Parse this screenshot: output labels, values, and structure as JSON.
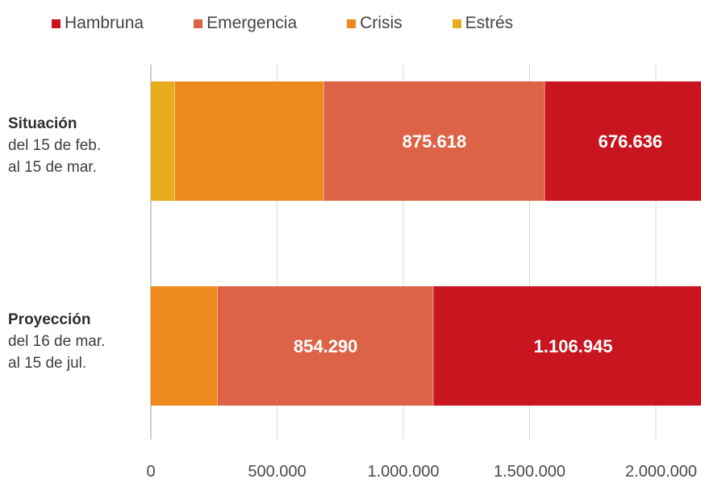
{
  "chart_data": {
    "type": "bar",
    "orientation": "horizontal",
    "stacked": true,
    "legend_position": "top",
    "categories": [
      {
        "title": "Situación",
        "line2": "del 15 de feb.",
        "line3": "al 15 de mar."
      },
      {
        "title": "Proyección",
        "line2": "del 16 de mar.",
        "line3": "al 15 de jul."
      }
    ],
    "series": [
      {
        "name": "Estrés",
        "color": "#e8ad1f",
        "values": [
          95000,
          0
        ],
        "labels": [
          "",
          ""
        ]
      },
      {
        "name": "Crisis",
        "color": "#ee8a1d",
        "values": [
          590000,
          265000
        ],
        "labels": [
          "",
          ""
        ]
      },
      {
        "name": "Emergencia",
        "color": "#dc6347",
        "values": [
          875618,
          854290
        ],
        "labels": [
          "875.618",
          "854.290"
        ]
      },
      {
        "name": "Hambruna",
        "color": "#c9151f",
        "values": [
          676636,
          1106945
        ],
        "labels": [
          "676.636",
          "1.106.945"
        ]
      }
    ],
    "legend_order": [
      "Hambruna",
      "Emergencia",
      "Crisis",
      "Estrés"
    ],
    "xlim": [
      0,
      2200000
    ],
    "xticks": [
      0,
      500000,
      1000000,
      1500000,
      2000000
    ],
    "xtick_labels": [
      "0",
      "500.000",
      "1.000.000",
      "1.500.000",
      "2.000.000"
    ],
    "grid": true
  }
}
